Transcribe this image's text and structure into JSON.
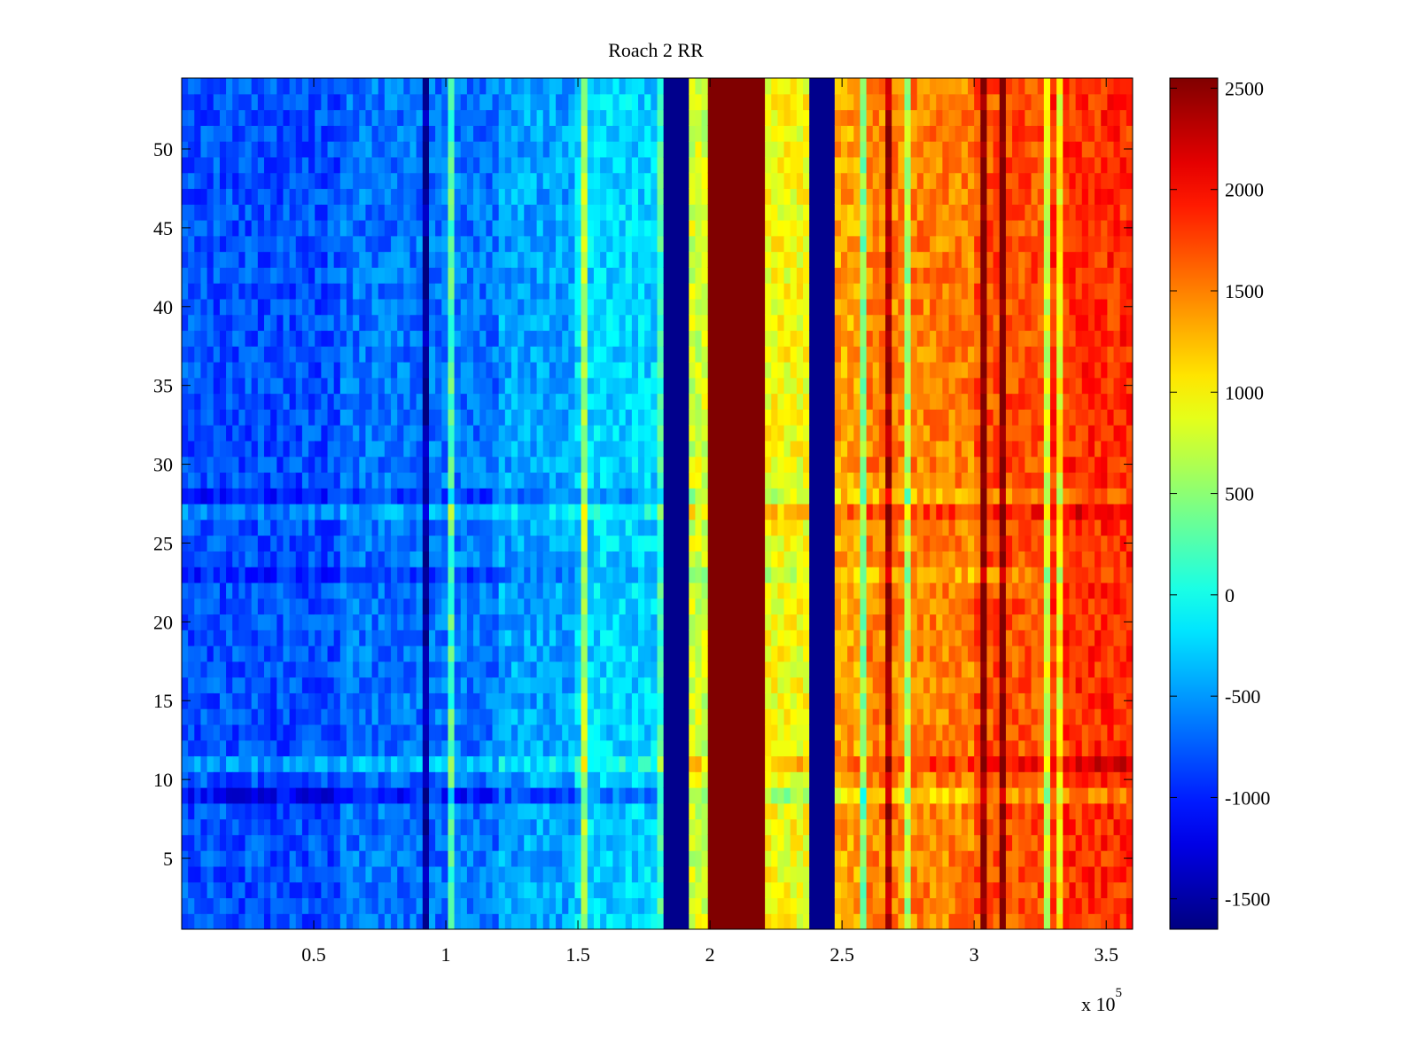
{
  "chart_data": {
    "type": "heatmap",
    "title": "Roach 2 RR",
    "xlabel": "",
    "ylabel": "",
    "x_multiplier_label": "x 10",
    "x_multiplier_exponent": "5",
    "xlim": [
      0,
      3.6
    ],
    "ylim": [
      0.5,
      54.5
    ],
    "x_ticks": [
      0.5,
      1,
      1.5,
      2,
      2.5,
      3,
      3.5
    ],
    "x_tick_labels": [
      "0.5",
      "1",
      "1.5",
      "2",
      "2.5",
      "3",
      "3.5"
    ],
    "y_ticks": [
      5,
      10,
      15,
      20,
      25,
      30,
      35,
      40,
      45,
      50
    ],
    "y_tick_labels": [
      "5",
      "10",
      "15",
      "20",
      "25",
      "30",
      "35",
      "40",
      "45",
      "50"
    ],
    "rows": 54,
    "colormap": "jet",
    "clim": [
      -1650,
      2550
    ],
    "colorbar_ticks": [
      2500,
      2000,
      1500,
      1000,
      500,
      0,
      -500,
      -1000,
      -1500
    ],
    "colorbar_tick_labels": [
      "2500",
      "2000",
      "1500",
      "1000",
      "500",
      "0",
      "-500",
      "-1000",
      "-1500"
    ],
    "column_bands": [
      {
        "x_start": 0.0,
        "x_end": 0.6,
        "value": -800
      },
      {
        "x_start": 0.6,
        "x_end": 1.2,
        "value": -650
      },
      {
        "x_start": 1.2,
        "x_end": 1.5,
        "value": -450
      },
      {
        "x_start": 1.5,
        "x_end": 1.8,
        "value": -250
      },
      {
        "x_start": 1.8,
        "x_end": 1.82,
        "value": 200
      },
      {
        "x_start": 1.82,
        "x_end": 1.92,
        "value": -1600
      },
      {
        "x_start": 1.92,
        "x_end": 2.0,
        "value": 800
      },
      {
        "x_start": 2.0,
        "x_end": 2.22,
        "value": 2550
      },
      {
        "x_start": 2.22,
        "x_end": 2.37,
        "value": 950
      },
      {
        "x_start": 2.37,
        "x_end": 2.48,
        "value": -1600
      },
      {
        "x_start": 2.48,
        "x_end": 2.6,
        "value": 1350
      },
      {
        "x_start": 2.6,
        "x_end": 3.0,
        "value": 1500
      },
      {
        "x_start": 3.0,
        "x_end": 3.3,
        "value": 1700
      },
      {
        "x_start": 3.3,
        "x_end": 3.6,
        "value": 1850
      }
    ],
    "notable_rows": [
      {
        "row": 9,
        "offset": -350
      },
      {
        "row": 11,
        "offset": 300
      },
      {
        "row": 23,
        "offset": -200
      },
      {
        "row": 27,
        "offset": 250
      },
      {
        "row": 28,
        "offset": -200
      }
    ]
  }
}
